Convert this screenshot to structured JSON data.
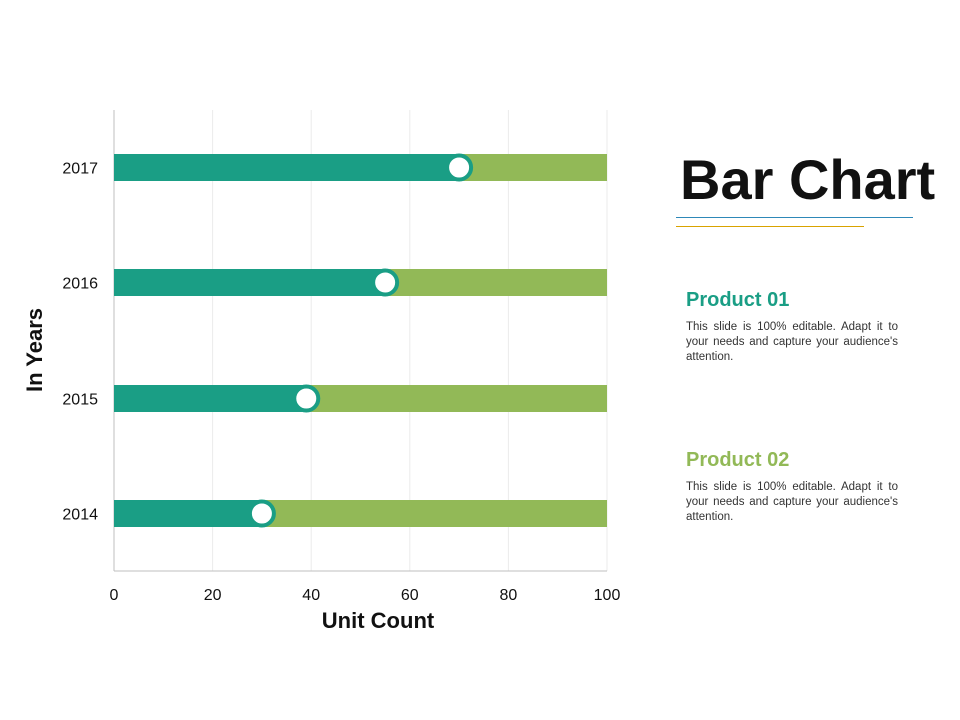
{
  "colors": {
    "value_bar": "#1a9e85",
    "track_bar": "#92b957",
    "product_01": "#1a9e85",
    "product_02": "#92b957",
    "axis": "#bfbfbf",
    "grid": "#ebebeb"
  },
  "chart_data": {
    "type": "bar",
    "orientation": "horizontal",
    "categories": [
      "2014",
      "2015",
      "2016",
      "2017"
    ],
    "series": [
      {
        "values": [
          30,
          39,
          55,
          70
        ]
      }
    ],
    "track_max": 100,
    "title": "",
    "xlabel": "Unit Count",
    "ylabel": "In Years",
    "xlim": [
      0,
      100
    ],
    "xticks": [
      "0",
      "20",
      "40",
      "60",
      "80",
      "100"
    ],
    "grid": "vertical",
    "marker": "circle"
  },
  "slide": {
    "title": "Bar Chart",
    "products": [
      {
        "heading": "Product 01",
        "description": "This slide is 100% editable. Adapt it to your needs and capture your audience's attention."
      },
      {
        "heading": "Product 02",
        "description": "This slide is 100% editable. Adapt it to your needs and capture your audience's attention."
      }
    ]
  }
}
